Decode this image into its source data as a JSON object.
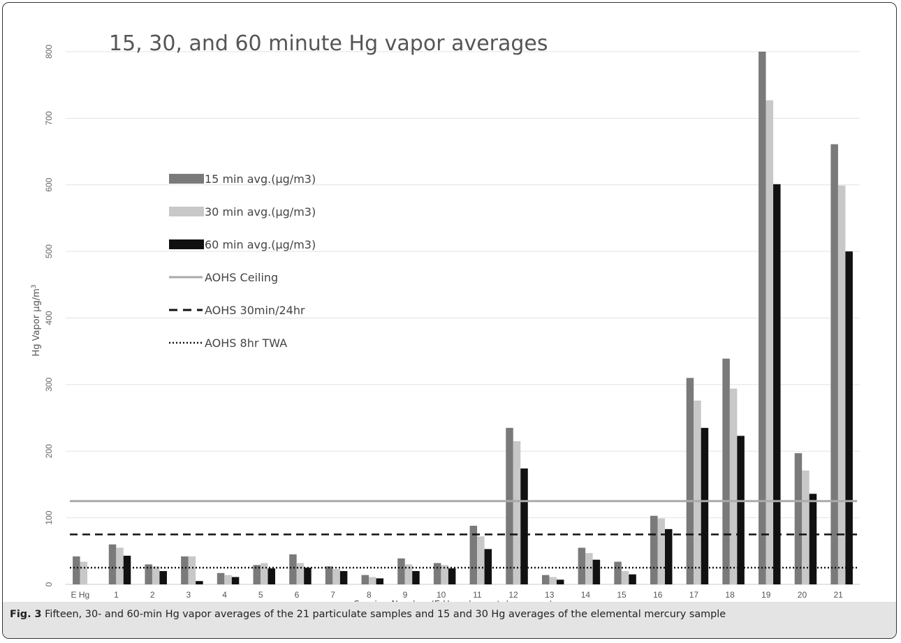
{
  "chart_data": {
    "type": "bar",
    "title": "15, 30, and 60 minute Hg vapor averages",
    "xlabel": "Session Number (E Hg=elemental mercury)",
    "ylabel": "Hg Vapor µg/m",
    "ylabel_sup": "3",
    "ylim": [
      0,
      800
    ],
    "yticks": [
      "0",
      "100",
      "200",
      "300",
      "400",
      "500",
      "600",
      "700",
      "800"
    ],
    "grid": true,
    "legend_position": "left-middle",
    "categories": [
      "E Hg",
      "1",
      "2",
      "3",
      "4",
      "5",
      "6",
      "7",
      "8",
      "9",
      "10",
      "11",
      "12",
      "13",
      "14",
      "15",
      "16",
      "17",
      "18",
      "19",
      "20",
      "21"
    ],
    "series": [
      {
        "name": "15 min avg.(µg/m3)",
        "color": "#7a7a7a",
        "values": [
          42,
          60,
          30,
          42,
          17,
          29,
          45,
          27,
          14,
          39,
          32,
          88,
          235,
          14,
          55,
          34,
          103,
          310,
          339,
          800,
          197,
          661
        ]
      },
      {
        "name": "30 min avg.(µg/m3)",
        "color": "#c8c8c8",
        "values": [
          34,
          55,
          27,
          42,
          14,
          32,
          32,
          23,
          11,
          30,
          29,
          72,
          215,
          11,
          47,
          20,
          99,
          276,
          294,
          727,
          171,
          599
        ]
      },
      {
        "name": "60 min avg.(µg/m3)",
        "color": "#111111",
        "values": [
          null,
          43,
          20,
          5,
          11,
          24,
          25,
          20,
          9,
          20,
          24,
          53,
          174,
          7,
          37,
          15,
          83,
          235,
          223,
          601,
          136,
          500
        ]
      }
    ],
    "reference_lines": [
      {
        "name": "AOHS Ceiling",
        "value": 125,
        "style": "solid",
        "color": "#aaaaaa"
      },
      {
        "name": "AOHS 30min/24hr",
        "value": 75,
        "style": "dashed",
        "color": "#111111"
      },
      {
        "name": "AOHS 8hr TWA",
        "value": 25,
        "style": "dotted",
        "color": "#111111"
      }
    ]
  },
  "caption": {
    "label": "Fig. 3",
    "text": "Fifteen, 30- and 60-min Hg vapor averages of the 21 particulate samples and 15 and 30 Hg averages of the elemental mercury sample"
  }
}
